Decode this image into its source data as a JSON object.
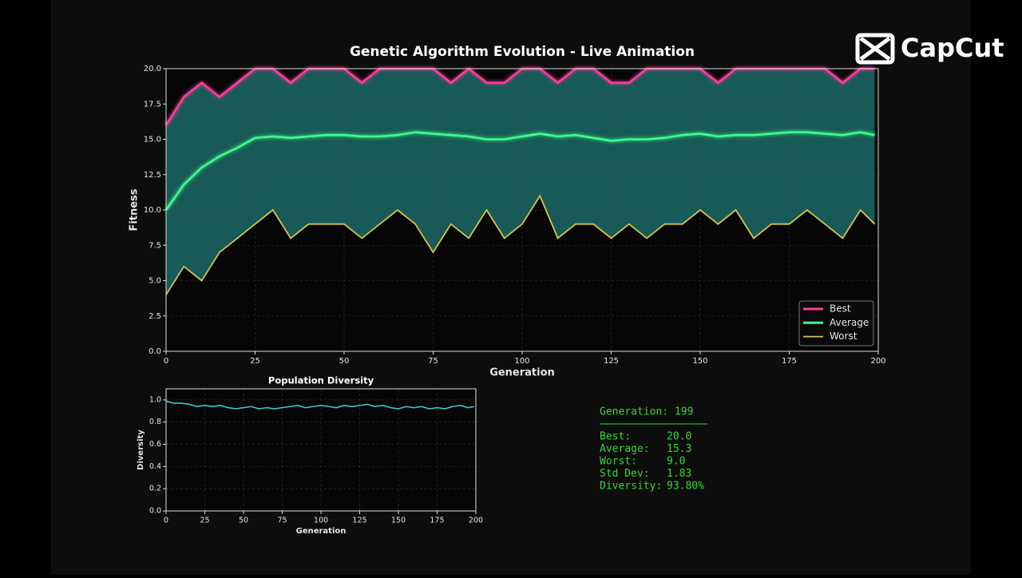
{
  "chart_data": [
    {
      "type": "line",
      "title": "Genetic Algorithm Evolution - Live Animation",
      "xlabel": "Generation",
      "ylabel": "Fitness",
      "x": [
        0,
        5,
        10,
        15,
        20,
        25,
        30,
        35,
        40,
        45,
        50,
        55,
        60,
        65,
        70,
        75,
        80,
        85,
        90,
        95,
        100,
        105,
        110,
        115,
        120,
        125,
        130,
        135,
        140,
        145,
        150,
        155,
        160,
        165,
        170,
        175,
        180,
        185,
        190,
        195,
        199
      ],
      "series": [
        {
          "name": "Best",
          "color": "#ff3d9a",
          "values": [
            16,
            18,
            19,
            18,
            19,
            20,
            20,
            19,
            20,
            20,
            20,
            19,
            20,
            20,
            20,
            20,
            19,
            20,
            19,
            19,
            20,
            20,
            19,
            20,
            20,
            19,
            19,
            20,
            20,
            20,
            20,
            19,
            20,
            20,
            20,
            20,
            20,
            20,
            19,
            20,
            20
          ]
        },
        {
          "name": "Average",
          "color": "#3dff8c",
          "values": [
            10,
            11.8,
            13,
            13.8,
            14.4,
            15.1,
            15.2,
            15.1,
            15.2,
            15.3,
            15.3,
            15.2,
            15.2,
            15.3,
            15.5,
            15.4,
            15.3,
            15.2,
            15,
            15,
            15.2,
            15.4,
            15.2,
            15.3,
            15.1,
            14.9,
            15,
            15,
            15.1,
            15.3,
            15.4,
            15.2,
            15.3,
            15.3,
            15.4,
            15.5,
            15.5,
            15.4,
            15.3,
            15.5,
            15.3
          ]
        },
        {
          "name": "Worst",
          "color": "#d6c545",
          "values": [
            4,
            6,
            5,
            7,
            8,
            9,
            10,
            8,
            9,
            9,
            9,
            8,
            9,
            10,
            9,
            7,
            9,
            8,
            10,
            8,
            9,
            11,
            8,
            9,
            9,
            8,
            9,
            8,
            9,
            9,
            10,
            9,
            10,
            8,
            9,
            9,
            10,
            9,
            8,
            10,
            9
          ]
        }
      ],
      "fill_between": true,
      "fill_color": "#1b6a66",
      "xlim": [
        0,
        200
      ],
      "xticks": [
        0,
        25,
        50,
        75,
        100,
        125,
        150,
        175,
        200
      ],
      "ylim": [
        0,
        20
      ],
      "yticks": [
        {
          "value": 0,
          "label": "0.0"
        },
        2.5,
        {
          "value": 5,
          "label": "5.0"
        },
        7.5,
        {
          "value": 10,
          "label": "10.0"
        },
        12.5,
        {
          "value": 15,
          "label": "15.0"
        },
        17.5,
        {
          "value": 20,
          "label": "20.0"
        }
      ],
      "grid": true,
      "legend": "lower right"
    },
    {
      "type": "line",
      "title": "Population Diversity",
      "xlabel": "Generation",
      "ylabel": "Diversity",
      "x": [
        0,
        5,
        10,
        15,
        20,
        25,
        30,
        35,
        40,
        45,
        50,
        55,
        60,
        65,
        70,
        75,
        80,
        85,
        90,
        95,
        100,
        105,
        110,
        115,
        120,
        125,
        130,
        135,
        140,
        145,
        150,
        155,
        160,
        165,
        170,
        175,
        180,
        185,
        190,
        195,
        199
      ],
      "series": [
        {
          "name": "Diversity",
          "color": "#3ec8c8",
          "values": [
            0.99,
            0.97,
            0.97,
            0.96,
            0.94,
            0.95,
            0.94,
            0.95,
            0.93,
            0.92,
            0.93,
            0.94,
            0.92,
            0.93,
            0.92,
            0.93,
            0.94,
            0.95,
            0.93,
            0.94,
            0.95,
            0.94,
            0.93,
            0.95,
            0.94,
            0.95,
            0.96,
            0.94,
            0.95,
            0.93,
            0.92,
            0.94,
            0.93,
            0.94,
            0.92,
            0.93,
            0.92,
            0.94,
            0.95,
            0.93,
            0.94
          ]
        }
      ],
      "xlim": [
        0,
        200
      ],
      "xticks": [
        0,
        25,
        50,
        75,
        100,
        125,
        150,
        175,
        200
      ],
      "ylim": [
        0,
        1.1
      ],
      "yticks": [
        {
          "value": 0,
          "label": "0.0"
        },
        0.2,
        0.4,
        0.6,
        0.8,
        {
          "value": 1,
          "label": "1.0"
        }
      ],
      "grid": true
    }
  ],
  "stats": {
    "header": "Generation: 199",
    "rows": [
      {
        "label": "Best:",
        "value": "20.0"
      },
      {
        "label": "Average:",
        "value": "15.3"
      },
      {
        "label": "Worst:",
        "value": "9.0"
      },
      {
        "label": "Std Dev:",
        "value": "1.83"
      },
      {
        "label": "Diversity:",
        "value": "93.80%"
      }
    ]
  },
  "watermark": "CapCut"
}
